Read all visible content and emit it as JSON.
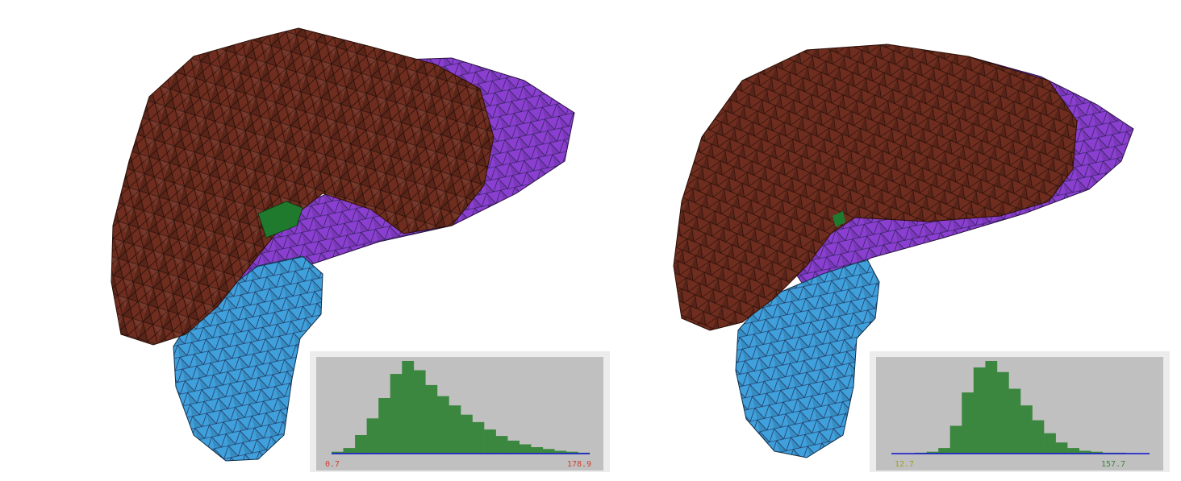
{
  "colors": {
    "liver": "#6e2d1f",
    "liver_edge": "#2a0f08",
    "vessel": "#8b3fd0",
    "gallbladder": "#3fa0dc",
    "tumor": "#1f7a2e",
    "hist_bg": "#c0c0c0",
    "hist_frame": "#ececec",
    "hist_bar": "#3b873f",
    "hist_axis": "#1010d0"
  },
  "chart_data": [
    {
      "type": "bar",
      "title": "",
      "xlabel": "",
      "ylabel": "",
      "min_label": "0.7",
      "max_label": "178.9",
      "min_label_color": "#d04030",
      "max_label_color": "#d04030",
      "xlim": [
        0.7,
        178.9
      ],
      "peak": 55,
      "relative_counts": [
        0.02,
        0.06,
        0.2,
        0.38,
        0.6,
        0.86,
        1.0,
        0.9,
        0.74,
        0.62,
        0.52,
        0.42,
        0.34,
        0.26,
        0.19,
        0.14,
        0.1,
        0.07,
        0.05,
        0.03,
        0.02,
        0.01
      ]
    },
    {
      "type": "bar",
      "title": "",
      "xlabel": "",
      "ylabel": "",
      "min_label": "12.7",
      "max_label": "157.7",
      "min_label_color": "#a0a020",
      "max_label_color": "#3b873f",
      "xlim": [
        12.7,
        157.7
      ],
      "peak": 63,
      "relative_counts": [
        0,
        0.0,
        0.01,
        0.02,
        0.06,
        0.3,
        0.66,
        0.93,
        1.0,
        0.88,
        0.7,
        0.52,
        0.36,
        0.22,
        0.12,
        0.06,
        0.03,
        0.02,
        0.01,
        0.01,
        0.005,
        0
      ]
    }
  ]
}
